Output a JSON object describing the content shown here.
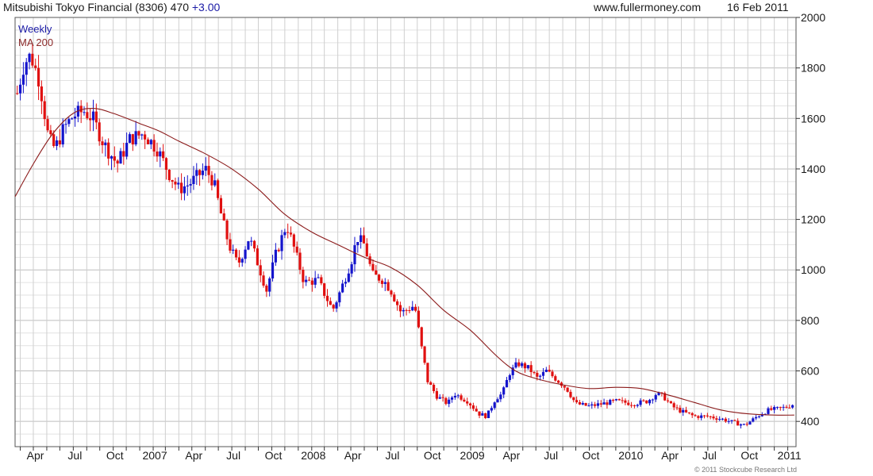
{
  "header": {
    "title": "Mitsubishi Tokyo Financial (8306) 470",
    "change": "+3.00",
    "website": "www.fullermoney.com",
    "date": "16 Feb 2011"
  },
  "legend": {
    "weekly_label": "Weekly",
    "ma_label": "MA 200",
    "weekly_color": "#1a1aa6",
    "ma_color": "#8b2a2a"
  },
  "copyright": "© 2011 Stockcube Research Ltd",
  "colors": {
    "up_bar": "#1414cc",
    "down_bar": "#e01010",
    "ma_line": "#8b1a1a"
  },
  "chart_data": {
    "type": "candlestick",
    "title": "Mitsubishi Tokyo Financial (8306) 470 +3.00",
    "frequency": "Weekly",
    "ylim": [
      300,
      2000
    ],
    "y_ticks": [
      400,
      600,
      800,
      1000,
      1200,
      1400,
      1600,
      1800,
      2000
    ],
    "x_tick_labels": [
      "Apr",
      "Jul",
      "Oct",
      "2007",
      "Apr",
      "Jul",
      "Oct",
      "2008",
      "Apr",
      "Jul",
      "Oct",
      "2009",
      "Apr",
      "Jul",
      "Oct",
      "2010",
      "Apr",
      "Jul",
      "Oct",
      "2011"
    ],
    "x_range": [
      "2006-03-20",
      "2011-02-20"
    ],
    "grid": true,
    "y_axis_side": "right",
    "price_anchors": [
      [
        "2006-03-25",
        1700
      ],
      [
        "2006-04-10",
        1820
      ],
      [
        "2006-04-25",
        1850
      ],
      [
        "2006-05-15",
        1750
      ],
      [
        "2006-06-05",
        1520
      ],
      [
        "2006-06-20",
        1480
      ],
      [
        "2006-07-10",
        1560
      ],
      [
        "2006-08-01",
        1610
      ],
      [
        "2006-08-25",
        1630
      ],
      [
        "2006-09-15",
        1600
      ],
      [
        "2006-10-10",
        1500
      ],
      [
        "2006-11-10",
        1420
      ],
      [
        "2006-12-10",
        1520
      ],
      [
        "2007-01-10",
        1540
      ],
      [
        "2007-02-10",
        1480
      ],
      [
        "2007-03-10",
        1380
      ],
      [
        "2007-04-01",
        1320
      ],
      [
        "2007-04-25",
        1340
      ],
      [
        "2007-06-01",
        1400
      ],
      [
        "2007-06-20",
        1350
      ],
      [
        "2007-07-10",
        1200
      ],
      [
        "2007-07-25",
        1100
      ],
      [
        "2007-08-15",
        1020
      ],
      [
        "2007-09-10",
        1130
      ],
      [
        "2007-10-01",
        1020
      ],
      [
        "2007-10-20",
        920
      ],
      [
        "2007-11-10",
        1060
      ],
      [
        "2007-12-05",
        1180
      ],
      [
        "2007-12-20",
        1100
      ],
      [
        "2008-01-15",
        950
      ],
      [
        "2008-02-15",
        960
      ],
      [
        "2008-03-20",
        840
      ],
      [
        "2008-04-10",
        930
      ],
      [
        "2008-05-05",
        1050
      ],
      [
        "2008-05-15",
        1130
      ],
      [
        "2008-06-01",
        1100
      ],
      [
        "2008-06-20",
        980
      ],
      [
        "2008-07-15",
        960
      ],
      [
        "2008-08-01",
        920
      ],
      [
        "2008-08-25",
        830
      ],
      [
        "2008-09-25",
        860
      ],
      [
        "2008-10-10",
        700
      ],
      [
        "2008-10-25",
        560
      ],
      [
        "2008-11-15",
        500
      ],
      [
        "2008-12-10",
        470
      ],
      [
        "2008-12-25",
        510
      ],
      [
        "2009-01-25",
        480
      ],
      [
        "2009-02-20",
        430
      ],
      [
        "2009-03-10",
        420
      ],
      [
        "2009-03-30",
        490
      ],
      [
        "2009-04-15",
        510
      ],
      [
        "2009-05-01",
        590
      ],
      [
        "2009-05-20",
        630
      ],
      [
        "2009-06-15",
        610
      ],
      [
        "2009-07-05",
        570
      ],
      [
        "2009-07-25",
        600
      ],
      [
        "2009-08-15",
        570
      ],
      [
        "2009-09-10",
        530
      ],
      [
        "2009-10-01",
        470
      ],
      [
        "2009-11-01",
        460
      ],
      [
        "2009-12-01",
        470
      ],
      [
        "2010-01-01",
        480
      ],
      [
        "2010-02-10",
        470
      ],
      [
        "2010-03-15",
        480
      ],
      [
        "2010-04-05",
        510
      ],
      [
        "2010-04-20",
        500
      ],
      [
        "2010-05-10",
        460
      ],
      [
        "2010-06-01",
        440
      ],
      [
        "2010-07-01",
        420
      ],
      [
        "2010-08-01",
        420
      ],
      [
        "2010-09-01",
        410
      ],
      [
        "2010-10-01",
        395
      ],
      [
        "2010-10-25",
        385
      ],
      [
        "2010-11-15",
        410
      ],
      [
        "2010-12-01",
        430
      ],
      [
        "2010-12-20",
        445
      ],
      [
        "2011-01-10",
        450
      ],
      [
        "2011-01-25",
        455
      ],
      [
        "2011-02-16",
        470
      ]
    ],
    "ma_200": [
      [
        "2006-03-20",
        1290
      ],
      [
        "2006-05-01",
        1420
      ],
      [
        "2006-06-15",
        1540
      ],
      [
        "2006-08-01",
        1620
      ],
      [
        "2006-09-15",
        1640
      ],
      [
        "2006-11-01",
        1620
      ],
      [
        "2007-01-01",
        1580
      ],
      [
        "2007-02-15",
        1550
      ],
      [
        "2007-04-01",
        1510
      ],
      [
        "2007-06-01",
        1460
      ],
      [
        "2007-08-01",
        1400
      ],
      [
        "2007-10-01",
        1320
      ],
      [
        "2007-12-01",
        1220
      ],
      [
        "2008-02-01",
        1150
      ],
      [
        "2008-04-01",
        1100
      ],
      [
        "2008-06-01",
        1050
      ],
      [
        "2008-08-01",
        1010
      ],
      [
        "2008-10-01",
        940
      ],
      [
        "2008-12-01",
        840
      ],
      [
        "2009-02-01",
        760
      ],
      [
        "2009-04-01",
        660
      ],
      [
        "2009-05-15",
        600
      ],
      [
        "2009-07-01",
        570
      ],
      [
        "2009-09-01",
        545
      ],
      [
        "2009-11-01",
        530
      ],
      [
        "2010-01-01",
        535
      ],
      [
        "2010-03-01",
        530
      ],
      [
        "2010-05-01",
        505
      ],
      [
        "2010-07-01",
        475
      ],
      [
        "2010-09-01",
        445
      ],
      [
        "2010-11-01",
        430
      ],
      [
        "2011-01-01",
        425
      ],
      [
        "2011-02-16",
        425
      ]
    ]
  }
}
